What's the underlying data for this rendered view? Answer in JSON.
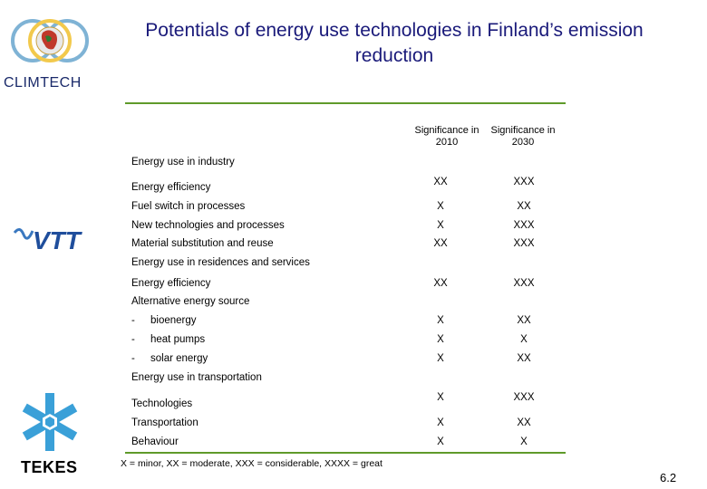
{
  "title": "Potentials of energy use technologies in Finland’s emission reduction",
  "logos": {
    "climtech": "CLIMTECH",
    "vtt": "VTT",
    "tekes": "TEKES"
  },
  "columns": {
    "col1": "Significance in 2010",
    "col2": "Significance in 2030"
  },
  "sections": [
    {
      "heading": "Energy use in industry"
    },
    {
      "heading": "Energy use in residences and services"
    },
    {
      "heading": "Energy use in transportation"
    }
  ],
  "rows": [
    {
      "label": "Energy efficiency",
      "v2010": "XX",
      "v2030": "XXX"
    },
    {
      "label": "Fuel switch in processes",
      "v2010": "X",
      "v2030": "XX"
    },
    {
      "label": "New technologies and processes",
      "v2010": "X",
      "v2030": "XXX"
    },
    {
      "label": "Material substitution and reuse",
      "v2010": "XX",
      "v2030": "XXX"
    },
    {
      "label": "Energy efficiency",
      "v2010": "XX",
      "v2030": "XXX"
    },
    {
      "label": "Alternative energy source"
    },
    {
      "dash": "-",
      "label": "bioenergy",
      "v2010": "X",
      "v2030": "XX"
    },
    {
      "dash": "-",
      "label": "heat pumps",
      "v2010": "X",
      "v2030": "X"
    },
    {
      "dash": "-",
      "label": "solar energy",
      "v2010": "X",
      "v2030": "XX"
    },
    {
      "label": "Technologies",
      "v2010": "X",
      "v2030": "XXX"
    },
    {
      "label": "Transportation",
      "v2010": "X",
      "v2030": "XX"
    },
    {
      "label": "Behaviour",
      "v2010": "X",
      "v2030": "X"
    }
  ],
  "footnote": "X = minor, XX = moderate, XXX = considerable, XXXX = great",
  "slide_number": "6.2",
  "colors": {
    "title": "#1a1a7a",
    "rule": "#5f9a2a",
    "tekes_blue": "#3aa0d8"
  }
}
